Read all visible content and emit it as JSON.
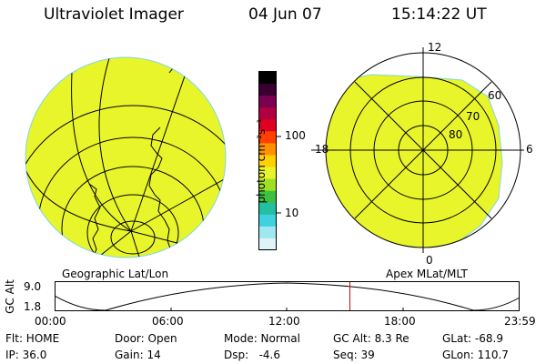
{
  "header": {
    "title": "Ultraviolet Imager",
    "date": "04 Jun 07",
    "time": "15:14:22 UT"
  },
  "left_panel": {
    "label": "Geographic Lat/Lon",
    "fill_color": "#e8f52a"
  },
  "right_panel": {
    "label": "Apex MLat/MLT",
    "mlt_labels": {
      "top": "12",
      "right": "6",
      "bottom": "0",
      "left": "18"
    },
    "lat_labels": [
      "60",
      "70",
      "80"
    ],
    "fill_color": "#e8f52a"
  },
  "colorbar": {
    "unit_label": "photon cm⁻²s⁻¹",
    "tick_labels": [
      "100",
      "10"
    ],
    "colors": [
      "#000000",
      "#3a0030",
      "#7a0050",
      "#b00040",
      "#e00020",
      "#ff4000",
      "#ff9000",
      "#ffd000",
      "#e8f52a",
      "#a0e020",
      "#40c040",
      "#20c0a0",
      "#40d0e0",
      "#a0e8f0",
      "#e0f4f8"
    ]
  },
  "altitude_plot": {
    "ylabel": "GC Alt",
    "y_ticks": [
      "9.0",
      "1.8"
    ],
    "x_ticks": [
      "00:00",
      "06:00",
      "12:00",
      "18:00",
      "23:59"
    ],
    "current_hour": 15.24,
    "marker_color": "#cc0000"
  },
  "status": {
    "flt": "Flt: HOME",
    "door": "Door: Open",
    "mode": "Mode: Normal",
    "gc_alt": "GC Alt: 8.3 Re",
    "glat": "GLat: -68.9",
    "ip": "IP: 36.0",
    "gain": "Gain: 14",
    "dsp": "Dsp:   -4.6",
    "seq": "Seq: 39",
    "glon": "GLon: 110.7"
  }
}
